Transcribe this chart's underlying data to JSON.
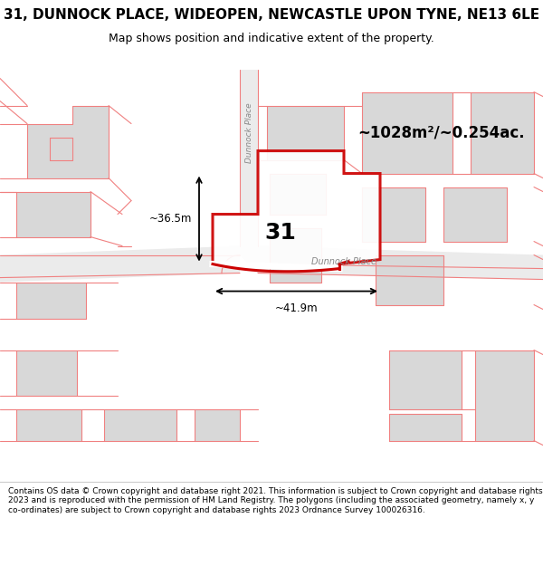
{
  "title": "31, DUNNOCK PLACE, WIDEOPEN, NEWCASTLE UPON TYNE, NE13 6LE",
  "subtitle": "Map shows position and indicative extent of the property.",
  "footer": "Contains OS data © Crown copyright and database right 2021. This information is subject to Crown copyright and database rights 2023 and is reproduced with the permission of HM Land Registry. The polygons (including the associated geometry, namely x, y co-ordinates) are subject to Crown copyright and database rights 2023 Ordnance Survey 100026316.",
  "area_label": "~1028m²/~0.254ac.",
  "dim_label_h": "~36.5m",
  "dim_label_w": "~41.9m",
  "number_label": "31",
  "road_label_v": "Dunnock Place",
  "road_label_h": "Dunnock Place",
  "title_fontsize": 11,
  "subtitle_fontsize": 9,
  "footer_fontsize": 6.5,
  "map_bg": "#ffffff",
  "building_fill": "#d8d8d8",
  "building_edge": "#c0c0c0",
  "road_fill": "#ebebeb",
  "pink": "#f08080",
  "red": "#cc0000",
  "dim_color": "#000000",
  "label_color": "#888888",
  "footer_sep_color": "#cccccc"
}
